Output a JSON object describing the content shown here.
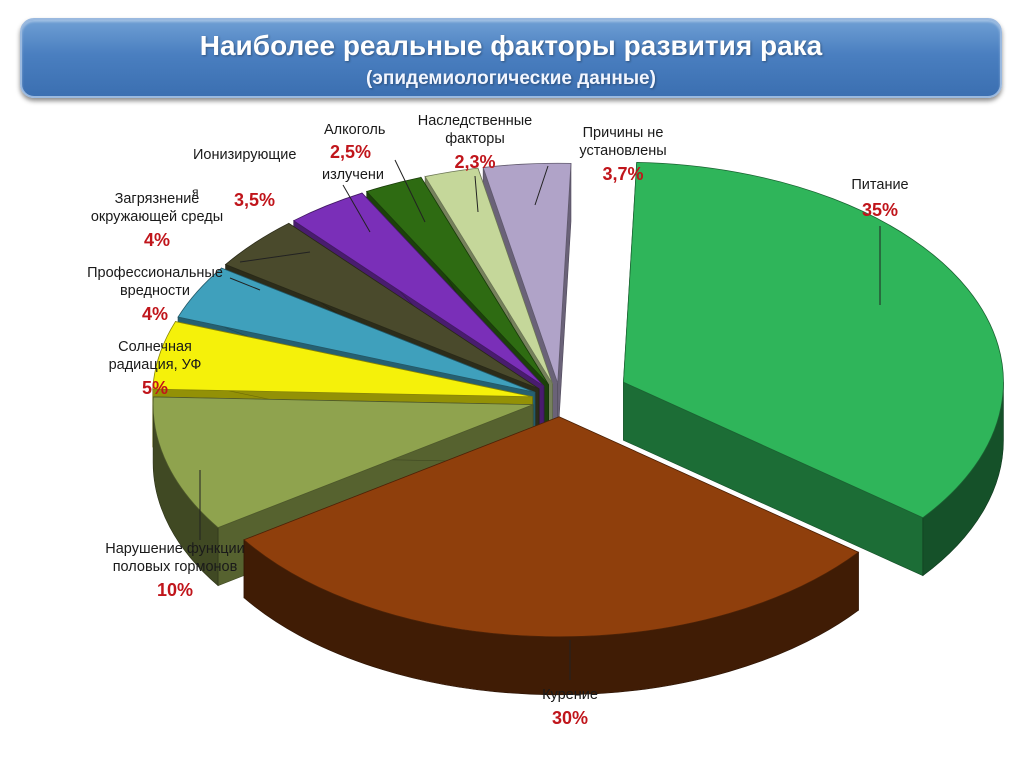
{
  "slide": {
    "title": "Наиболее реальные факторы развития рака",
    "subtitle": "(эпидемиологические данные)"
  },
  "chart_data": {
    "type": "pie",
    "style": "3d-exploded",
    "title": "Наиболее реальные факторы развития рака",
    "subtitle": "(эпидемиологические данные)",
    "slices": [
      {
        "name": "Питание",
        "value": 35,
        "value_label": "35%",
        "color": "#2fb55a"
      },
      {
        "name": "Курение",
        "value": 30,
        "value_label": "30%",
        "color": "#8f3f0c"
      },
      {
        "name": "Нарушение функции половых гормонов",
        "value": 10,
        "value_label": "10%",
        "color": "#8fa34e"
      },
      {
        "name": "Солнечная радиация, УФ",
        "value": 5,
        "value_label": "5%",
        "color": "#f5f10a"
      },
      {
        "name": "Профессиональные вредности",
        "value": 4,
        "value_label": "4%",
        "color": "#3fa0bc"
      },
      {
        "name": "Загрязнение окружающей среды",
        "value": 4,
        "value_label": "4%",
        "color": "#4a4a2c"
      },
      {
        "name": "Ионизирующие излучения",
        "value": 3.5,
        "value_label": "3,5%",
        "color": "#7a2fb8"
      },
      {
        "name": "Алкоголь",
        "value": 2.5,
        "value_label": "2,5%",
        "color": "#2e6b12"
      },
      {
        "name": "Наследственные факторы",
        "value": 2.3,
        "value_label": "2,3%",
        "color": "#c5d79a"
      },
      {
        "name": "Причины не установлены",
        "value": 3.7,
        "value_label": "3,7%",
        "color": "#b0a3c8"
      }
    ],
    "labels": {
      "pitanie": {
        "name": "Питание",
        "pct": "35%"
      },
      "kurenie": {
        "name": "Курение",
        "pct": "30%"
      },
      "gormony": {
        "line1": "Нарушение функции",
        "line2": "половых гормонов",
        "pct": "10%"
      },
      "uf": {
        "line1": "Солнечная",
        "line2": "радиация, УФ",
        "pct": "5%"
      },
      "prof": {
        "line1": "Профессиональные",
        "line2": "вредности",
        "pct": "4%"
      },
      "zagr": {
        "line1": "Загрязнение",
        "line2": "окружающей среды",
        "pct": "4%",
        "stray_char": "я"
      },
      "ioniz": {
        "line1": "Ионизирующие",
        "line2": "излучени",
        "pct": "3,5%"
      },
      "alko": {
        "name": "Алкоголь",
        "pct": "2,5%"
      },
      "nasl": {
        "line1": "Наследственные",
        "line2": "факторы",
        "pct": "2,3%"
      },
      "prich": {
        "line1": "Причины не",
        "line2": "установлены",
        "pct": "3,7%"
      }
    },
    "legend": "none"
  }
}
